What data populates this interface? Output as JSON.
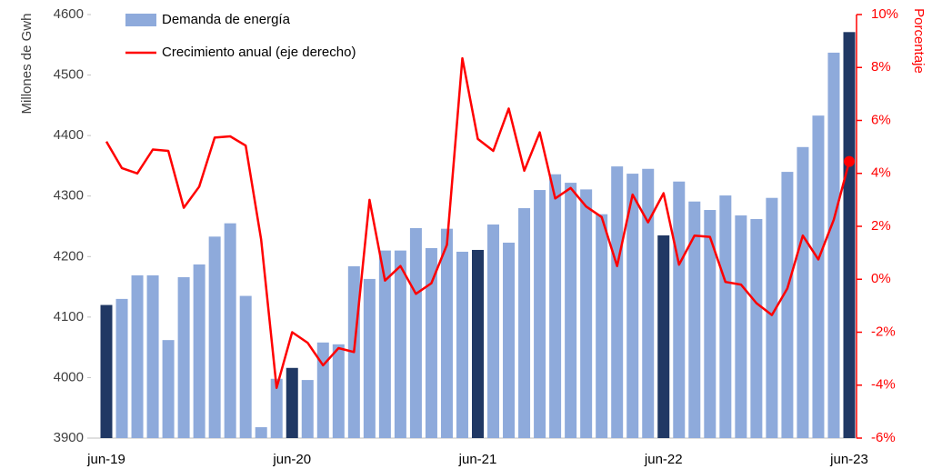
{
  "chart_data": {
    "type": "combo",
    "categories": [
      "jun-19",
      null,
      null,
      null,
      null,
      null,
      null,
      null,
      null,
      null,
      null,
      null,
      "jun-20",
      null,
      null,
      null,
      null,
      null,
      null,
      null,
      null,
      null,
      null,
      null,
      "jun-21",
      null,
      null,
      null,
      null,
      null,
      null,
      null,
      null,
      null,
      null,
      null,
      "jun-22",
      null,
      null,
      null,
      null,
      null,
      null,
      null,
      null,
      null,
      null,
      null,
      "jun-23"
    ],
    "series": [
      {
        "name": "Demanda de energía",
        "type": "bar",
        "axis": "y",
        "color": "#8eaadb",
        "colors": [
          "#203864",
          "#8eaadb",
          "#8eaadb",
          "#8eaadb",
          "#8eaadb",
          "#8eaadb",
          "#8eaadb",
          "#8eaadb",
          "#8eaadb",
          "#8eaadb",
          "#8eaadb",
          "#8eaadb",
          "#203864",
          "#8eaadb",
          "#8eaadb",
          "#8eaadb",
          "#8eaadb",
          "#8eaadb",
          "#8eaadb",
          "#8eaadb",
          "#8eaadb",
          "#8eaadb",
          "#8eaadb",
          "#8eaadb",
          "#203864",
          "#8eaadb",
          "#8eaadb",
          "#8eaadb",
          "#8eaadb",
          "#8eaadb",
          "#8eaadb",
          "#8eaadb",
          "#8eaadb",
          "#8eaadb",
          "#8eaadb",
          "#8eaadb",
          "#203864",
          "#8eaadb",
          "#8eaadb",
          "#8eaadb",
          "#8eaadb",
          "#8eaadb",
          "#8eaadb",
          "#8eaadb",
          "#8eaadb",
          "#8eaadb",
          "#8eaadb",
          "#8eaadb",
          "#203864"
        ],
        "values": [
          4120,
          4130,
          4169,
          4169,
          4062,
          4166,
          4187,
          4233,
          4255,
          4135,
          3918,
          3998,
          4016,
          3996,
          4058,
          4055,
          4184,
          4163,
          4210,
          4210,
          4247,
          4214,
          4246,
          4208,
          4211,
          4253,
          4223,
          4280,
          4310,
          4336,
          4322,
          4311,
          4270,
          4349,
          4337,
          4345,
          4235,
          4324,
          4291,
          4277,
          4301,
          4268,
          4262,
          4297,
          4340,
          4381,
          4433,
          4537,
          4571
        ]
      },
      {
        "name": "Crecimiento anual (eje derecho)",
        "type": "line",
        "axis": "y2",
        "color": "#ff0000",
        "last_point_marker": true,
        "values": [
          5.2,
          4.2,
          4.0,
          4.9,
          4.85,
          2.7,
          3.5,
          5.35,
          5.4,
          5.05,
          1.5,
          -4.1,
          -2.0,
          -2.4,
          -3.25,
          -2.6,
          -2.75,
          3.0,
          -0.05,
          0.5,
          -0.55,
          -0.15,
          1.3,
          8.35,
          5.3,
          4.85,
          6.45,
          4.1,
          5.55,
          3.05,
          3.45,
          2.75,
          2.35,
          0.5,
          3.2,
          2.15,
          3.25,
          0.55,
          1.65,
          1.6,
          -0.1,
          -0.2,
          -0.9,
          -1.35,
          -0.35,
          1.65,
          0.75,
          2.25,
          4.45
        ]
      }
    ],
    "ylabel": "Millones de Gwh",
    "y2label": "Porcentaje",
    "ylim": [
      3900,
      4600
    ],
    "yticks": [
      3900,
      4000,
      4100,
      4200,
      4300,
      4400,
      4500,
      4600
    ],
    "y2lim": [
      -6,
      10
    ],
    "y2ticks": [
      {
        "value": -6,
        "label": "-6%"
      },
      {
        "value": -4,
        "label": "-4%"
      },
      {
        "value": -2,
        "label": "-2%"
      },
      {
        "value": 0,
        "label": "0%"
      },
      {
        "value": 2,
        "label": "2%"
      },
      {
        "value": 4,
        "label": "4%"
      },
      {
        "value": 6,
        "label": "6%"
      },
      {
        "value": 8,
        "label": "8%"
      },
      {
        "value": 10,
        "label": "10%"
      }
    ],
    "y2color": "#ff0000",
    "legend": "top-left",
    "grid": false
  }
}
